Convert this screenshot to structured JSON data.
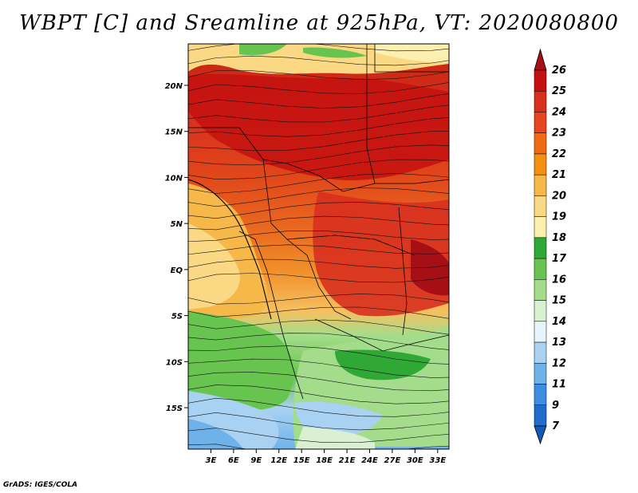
{
  "title": "WBPT [C] and Sreamline at 925hPa, VT: 2020080800",
  "credit": "GrADS: IGES/COLA",
  "map": {
    "lat_labels": [
      "20N",
      "15N",
      "10N",
      "5N",
      "EQ",
      "5S",
      "10S",
      "15S"
    ],
    "lat_values": [
      20,
      15,
      10,
      5,
      0,
      -5,
      -10,
      -15
    ],
    "lon_labels": [
      "3E",
      "6E",
      "9E",
      "12E",
      "15E",
      "18E",
      "21E",
      "24E",
      "27E",
      "30E",
      "33E"
    ],
    "lon_values": [
      3,
      6,
      9,
      12,
      15,
      18,
      21,
      24,
      27,
      30,
      33
    ],
    "lon_range": [
      0,
      34.5
    ],
    "lat_range": [
      -19.5,
      24.5
    ],
    "variable": "Wet-bulb potential temperature (C)",
    "overlay": "streamlines"
  },
  "colorbar": {
    "labels": [
      "26",
      "25",
      "24",
      "23",
      "22",
      "21",
      "20",
      "19",
      "18",
      "17",
      "16",
      "15",
      "14",
      "13",
      "12",
      "11",
      "9",
      "7"
    ],
    "colors": [
      "#a50f15",
      "#c4100f",
      "#d7301f",
      "#e5461d",
      "#ef6a15",
      "#f4900f",
      "#f7b84a",
      "#fbd883",
      "#fbf0b0",
      "#2fa836",
      "#66c44f",
      "#a3dd8b",
      "#d9f1d0",
      "#e6f4fb",
      "#a9d2f2",
      "#6fb2ea",
      "#3d8ee0",
      "#1f6ccb",
      "#1459b7"
    ],
    "extend": "both"
  }
}
